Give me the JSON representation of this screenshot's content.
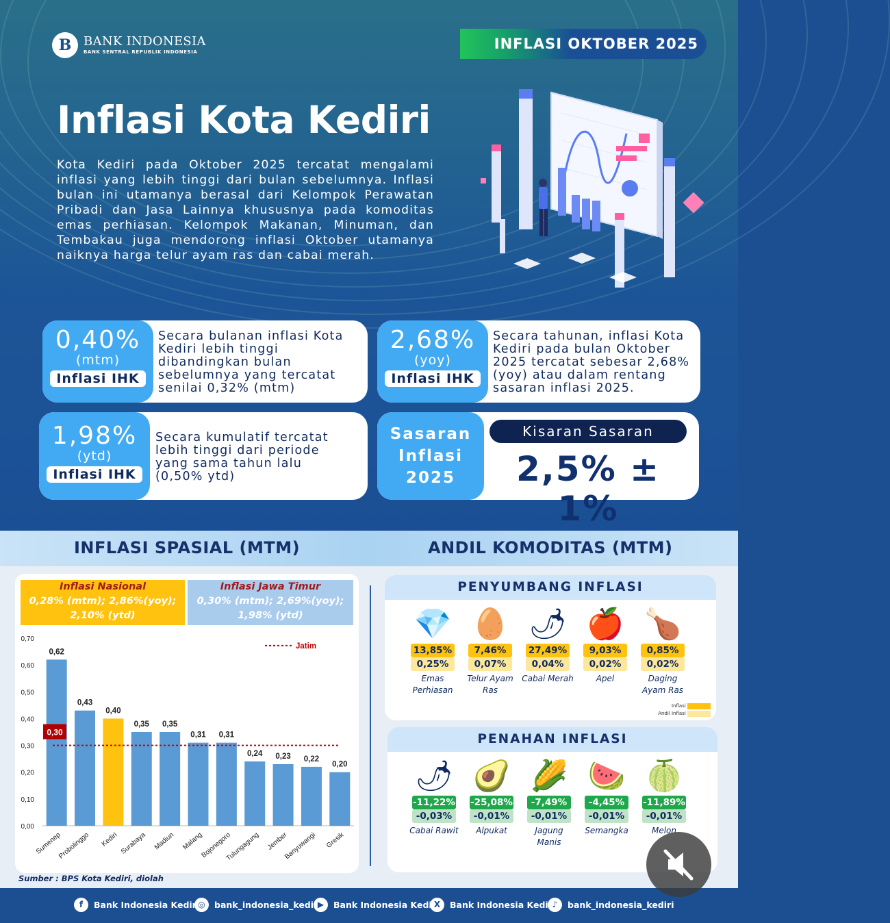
{
  "brand": {
    "name": "BANK INDONESIA",
    "sub": "BANK SENTRAL REPUBLIK INDONESIA",
    "mark": "B"
  },
  "period": "INFLASI OKTOBER 2025",
  "title": "Inflasi Kota Kediri",
  "intro": "Kota Kediri pada Oktober 2025 tercatat mengalami inflasi yang lebih tinggi dari bulan sebelumnya. Inflasi bulan ini utamanya berasal dari Kelompok Perawatan Pribadi dan Jasa Lainnya khususnya pada komoditas emas perhiasan. Kelompok Makanan, Minuman, dan Tembakau juga mendorong inflasi Oktober utamanya naiknya harga telur ayam ras dan cabai merah.",
  "stats": {
    "mtm": {
      "value": "0,40%",
      "unit": "(mtm)",
      "label": "Inflasi IHK",
      "desc": "Secara bulanan inflasi Kota Kediri lebih tinggi dibandingkan bulan sebelumnya yang tercatat senilai 0,32% (mtm)"
    },
    "yoy": {
      "value": "2,68%",
      "unit": "(yoy)",
      "label": "Inflasi IHK",
      "desc": "Secara tahunan, inflasi Kota Kediri pada bulan Oktober 2025 tercatat sebesar 2,68% (yoy) atau dalam rentang sasaran inflasi 2025."
    },
    "ytd": {
      "value": "1,98%",
      "unit": "(ytd)",
      "label": "Inflasi IHK",
      "desc": "Secara kumulatif tercatat lebih tinggi dari periode yang sama tahun lalu (0,50% ytd)"
    }
  },
  "target": {
    "left": "Sasaran Inflasi 2025",
    "head": "Kisaran Sasaran",
    "value": "2,5% ± 1%"
  },
  "sections": {
    "spatial": "INFLASI SPASIAL (MTM)",
    "andil": "ANDIL KOMODITAS (MTM)"
  },
  "legend_boxes": {
    "nasional": {
      "title": "Inflasi Nasional",
      "text": "0,28%  (mtm); 2,86%(yoy); 2,10% (ytd)"
    },
    "jatim": {
      "title": "Inflasi Jawa Timur",
      "text": "0,30%  (mtm); 2,69%(yoy); 1,98% (ytd)"
    }
  },
  "chart_data": {
    "type": "bar",
    "categories": [
      "Sumenep",
      "Probolinggo",
      "Kediri",
      "Surabaya",
      "Madiun",
      "Malang",
      "Bojonegoro",
      "Tulungagung",
      "Jember",
      "Banyuwangi",
      "Gresik"
    ],
    "values": [
      0.62,
      0.43,
      0.4,
      0.35,
      0.35,
      0.31,
      0.31,
      0.24,
      0.23,
      0.22,
      0.2
    ],
    "value_labels": [
      "0,62",
      "0,43",
      "0,40",
      "0,35",
      "0,35",
      "0,31",
      "0,31",
      "0,24",
      "0,23",
      "0,22",
      "0,20"
    ],
    "highlight": "Kediri",
    "ylim": [
      0,
      0.7
    ],
    "yticks": [
      "0,00",
      "0,10",
      "0,20",
      "0,30",
      "0,40",
      "0,50",
      "0,60",
      "0,70"
    ],
    "reference_line": {
      "name": "Jatim",
      "value": 0.3,
      "label": "0,30"
    },
    "colors": {
      "bar": "#5b9bd5",
      "highlight": "#ffc20e",
      "reference": "#c00000"
    },
    "legend_position": "top-right",
    "grid": false
  },
  "source": "Sumber : BPS Kota Kediri, diolah",
  "penyumbang": {
    "title": "PENYUMBANG INFLASI",
    "items": [
      {
        "icon": "necklace-icon",
        "glyph": "💎",
        "v1": "13,85%",
        "v2": "0,25%",
        "label": "Emas Perhiasan"
      },
      {
        "icon": "eggs-icon",
        "glyph": "🥚",
        "v1": "7,46%",
        "v2": "0,07%",
        "label": "Telur Ayam Ras"
      },
      {
        "icon": "red-chili-icon",
        "glyph": "🌶",
        "v1": "27,49%",
        "v2": "0,04%",
        "label": "Cabai Merah"
      },
      {
        "icon": "apple-icon",
        "glyph": "🍎",
        "v1": "9,03%",
        "v2": "0,02%",
        "label": "Apel"
      },
      {
        "icon": "chicken-meat-icon",
        "glyph": "🍗",
        "v1": "0,85%",
        "v2": "0,02%",
        "label": "Daging Ayam Ras"
      }
    ],
    "legend": {
      "inflasi": "Inflasi",
      "andil": "Andil Inflasi"
    }
  },
  "penahan": {
    "title": "PENAHAN INFLASI",
    "items": [
      {
        "icon": "cayenne-chili-icon",
        "glyph": "🌶",
        "v1": "-11,22%",
        "v2": "-0,03%",
        "label": "Cabai Rawit"
      },
      {
        "icon": "avocado-icon",
        "glyph": "🥑",
        "v1": "-25,08%",
        "v2": "-0,01%",
        "label": "Alpukat"
      },
      {
        "icon": "corn-icon",
        "glyph": "🌽",
        "v1": "-7,49%",
        "v2": "-0,01%",
        "label": "Jagung Manis"
      },
      {
        "icon": "watermelon-icon",
        "glyph": "🍉",
        "v1": "-4,45%",
        "v2": "-0,01%",
        "label": "Semangka"
      },
      {
        "icon": "melon-icon",
        "glyph": "🍈",
        "v1": "-11,89%",
        "v2": "-0,01%",
        "label": "Melon"
      }
    ]
  },
  "socials": [
    {
      "icon": "facebook-icon",
      "glyph": "f",
      "label": "Bank Indonesia Kediri"
    },
    {
      "icon": "instagram-icon",
      "glyph": "◎",
      "label": "bank_indonesia_kediri"
    },
    {
      "icon": "youtube-icon",
      "glyph": "▶",
      "label": "Bank Indonesia Kediri"
    },
    {
      "icon": "x-icon",
      "glyph": "X",
      "label": "Bank Indonesia Kediri"
    },
    {
      "icon": "tiktok-icon",
      "glyph": "♪",
      "label": "bank_indonesia_kediri"
    }
  ]
}
